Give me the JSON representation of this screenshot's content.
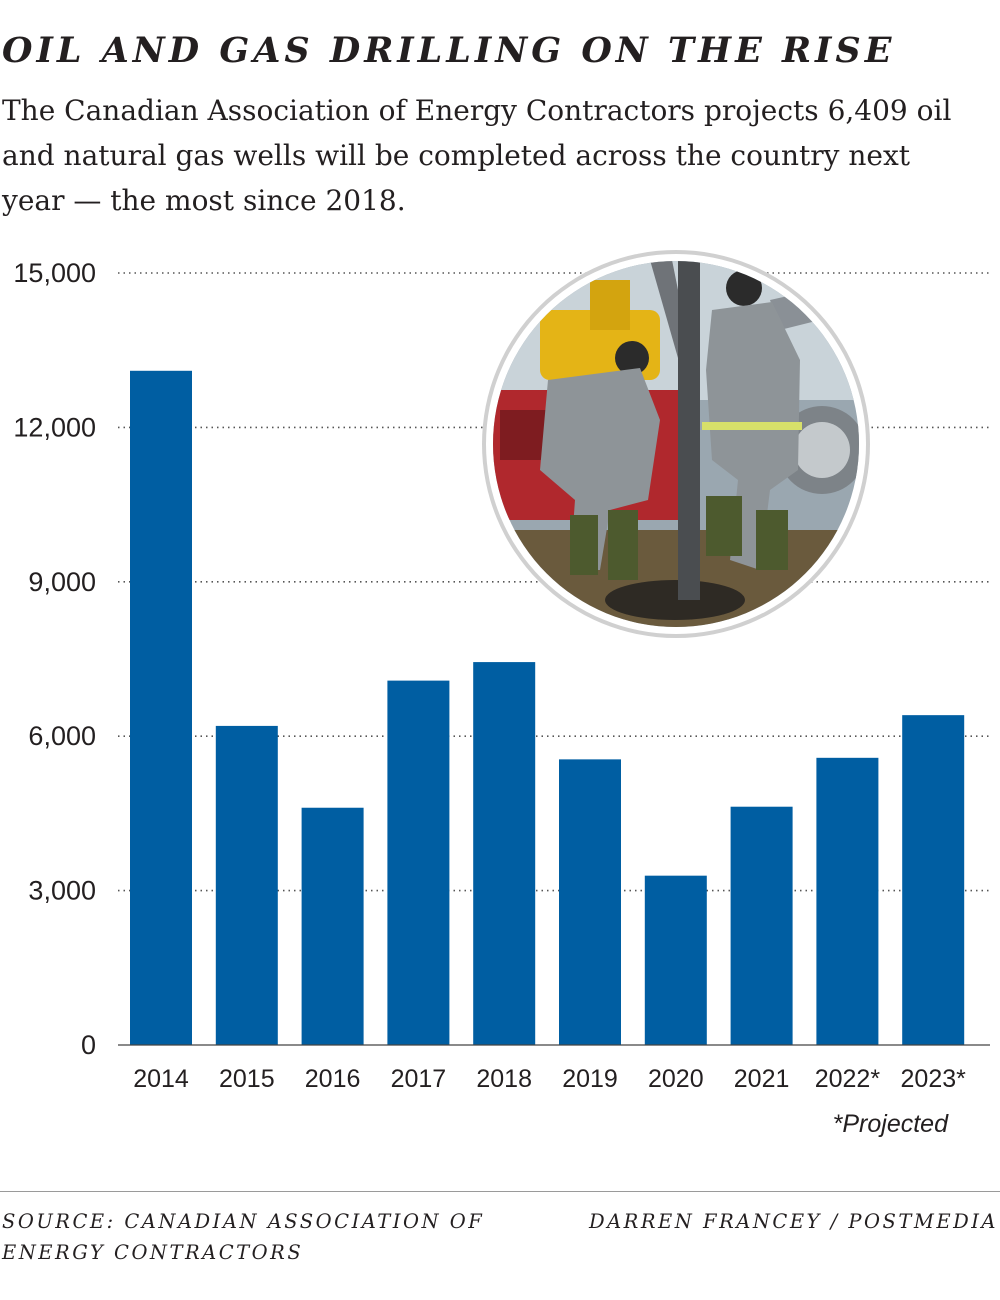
{
  "title": "OIL AND GAS DRILLING ON THE RISE",
  "subtitle": "The Canadian Association of Energy Contractors projects 6,409 oil and natural gas wells will be completed across the country next year — the most since 2018.",
  "footnote": "*Projected",
  "source": "SOURCE: CANADIAN ASSOCIATION OF ENERGY CONTRACTORS",
  "credit": "DARREN FRANCEY / POSTMEDIA",
  "photo": {
    "subject": "two oil rig workers in grey coveralls and hard hats working at a drilling rig floor"
  },
  "colors": {
    "bar": "#005ea2",
    "text": "#231f20",
    "grid": "#555555"
  },
  "chart_data": {
    "type": "bar",
    "categories": [
      "2014",
      "2015",
      "2016",
      "2017",
      "2018",
      "2019",
      "2020",
      "2021",
      "2022*",
      "2023*"
    ],
    "values": [
      13100,
      6200,
      4610,
      7080,
      7440,
      5550,
      3290,
      4630,
      5580,
      6409
    ],
    "yticks": [
      0,
      3000,
      6000,
      9000,
      12000,
      15000
    ],
    "ytick_labels": [
      "0",
      "3,000",
      "6,000",
      "9,000",
      "12,000",
      "15,000"
    ],
    "ylim": [
      0,
      15000
    ],
    "grid": "dotted horizontal"
  }
}
